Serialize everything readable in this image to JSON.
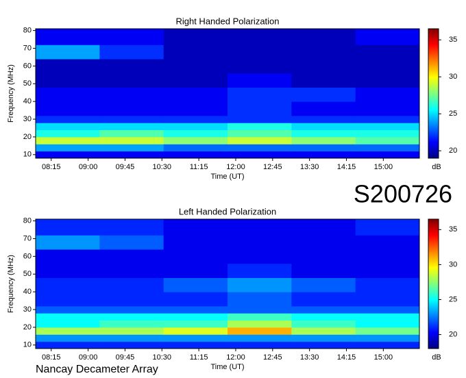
{
  "station_label": "S200726",
  "footer": "Nancay Decameter Array",
  "chart_data": [
    {
      "type": "heatmap",
      "title": "Right Handed Polarization",
      "x_label": "Time (UT)",
      "y_label": "Frequency (MHz)",
      "colorbar_label": "dB",
      "colormap": "jet",
      "xlim": [
        476,
        944
      ],
      "ylim": [
        8,
        81
      ],
      "clim": [
        19,
        36.5
      ],
      "xticks": [
        {
          "value": 495,
          "label": "08:15"
        },
        {
          "value": 540,
          "label": "09:00"
        },
        {
          "value": 585,
          "label": "09:45"
        },
        {
          "value": 630,
          "label": "10:30"
        },
        {
          "value": 675,
          "label": "11:15"
        },
        {
          "value": 720,
          "label": "12:00"
        },
        {
          "value": 765,
          "label": "12:45"
        },
        {
          "value": 810,
          "label": "13:30"
        },
        {
          "value": 855,
          "label": "14:15"
        },
        {
          "value": 900,
          "label": "15:00"
        }
      ],
      "yticks": [
        10,
        20,
        30,
        40,
        50,
        60,
        70,
        80
      ],
      "cticks": [
        20,
        25,
        30,
        35
      ],
      "x_edges": [
        476,
        554,
        632,
        710,
        788,
        866,
        944
      ],
      "y_edges": [
        8,
        12,
        16,
        20,
        24,
        28,
        32,
        40,
        48,
        56,
        64,
        72,
        81
      ],
      "z": [
        [
          21,
          21,
          21,
          21,
          21,
          21
        ],
        [
          24,
          24,
          23,
          23,
          23,
          23
        ],
        [
          29,
          29,
          28,
          29,
          28,
          27
        ],
        [
          26,
          27,
          26,
          27,
          26,
          26
        ],
        [
          25,
          25,
          25,
          26,
          25,
          25
        ],
        [
          22,
          22,
          22,
          22,
          22,
          22
        ],
        [
          21,
          21,
          21,
          22,
          21,
          21
        ],
        [
          21,
          21,
          21,
          22,
          22,
          21
        ],
        [
          20,
          20,
          20,
          21,
          20,
          20
        ],
        [
          20,
          20,
          20,
          20,
          20,
          20
        ],
        [
          24,
          22,
          20,
          20,
          20,
          20
        ],
        [
          21,
          21,
          20,
          20,
          20,
          21
        ]
      ]
    },
    {
      "type": "heatmap",
      "title": "Left Handed Polarization",
      "x_label": "Time (UT)",
      "y_label": "Frequency (MHz)",
      "colorbar_label": "dB",
      "colormap": "jet",
      "xlim": [
        476,
        944
      ],
      "ylim": [
        8,
        81
      ],
      "clim": [
        18,
        36.5
      ],
      "xticks": [
        {
          "value": 495,
          "label": "08:15"
        },
        {
          "value": 540,
          "label": "09:00"
        },
        {
          "value": 585,
          "label": "09:45"
        },
        {
          "value": 630,
          "label": "10:30"
        },
        {
          "value": 675,
          "label": "11:15"
        },
        {
          "value": 720,
          "label": "12:00"
        },
        {
          "value": 765,
          "label": "12:45"
        },
        {
          "value": 810,
          "label": "13:30"
        },
        {
          "value": 855,
          "label": "14:15"
        },
        {
          "value": 900,
          "label": "15:00"
        }
      ],
      "yticks": [
        10,
        20,
        30,
        40,
        50,
        60,
        70,
        80
      ],
      "cticks": [
        20,
        25,
        30,
        35
      ],
      "x_edges": [
        476,
        554,
        632,
        710,
        788,
        866,
        944
      ],
      "y_edges": [
        8,
        12,
        16,
        20,
        24,
        28,
        32,
        40,
        48,
        56,
        64,
        72,
        81
      ],
      "z": [
        [
          21,
          21,
          21,
          21,
          21,
          21
        ],
        [
          23,
          23,
          23,
          23,
          23,
          23
        ],
        [
          28,
          28,
          29,
          31,
          28,
          27
        ],
        [
          25,
          26,
          26,
          28,
          26,
          25
        ],
        [
          25,
          25,
          25,
          26,
          25,
          25
        ],
        [
          22,
          22,
          22,
          22,
          22,
          22
        ],
        [
          21,
          21,
          21,
          22,
          21,
          21
        ],
        [
          21,
          21,
          22,
          23,
          22,
          21
        ],
        [
          20,
          20,
          20,
          21,
          20,
          20
        ],
        [
          20,
          20,
          20,
          20,
          20,
          20
        ],
        [
          23,
          22,
          20,
          20,
          20,
          20
        ],
        [
          21,
          21,
          20,
          20,
          20,
          21
        ]
      ]
    }
  ]
}
